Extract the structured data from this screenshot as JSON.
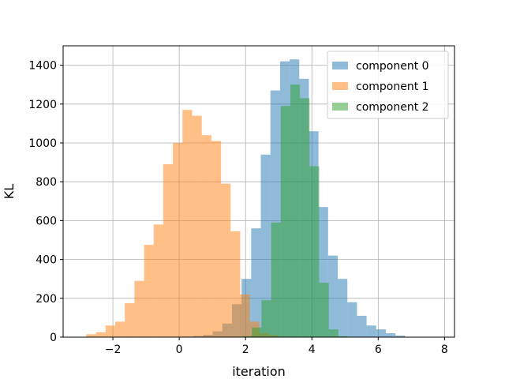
{
  "chart_data": {
    "type": "bar",
    "subtype": "overlaid-histogram",
    "title": "",
    "xlabel": "iteration",
    "ylabel": "KL",
    "xlim": [
      -3.5,
      8.3
    ],
    "ylim": [
      0,
      1500
    ],
    "xticks": [
      -2,
      0,
      2,
      4,
      6,
      8
    ],
    "xtick_labels": [
      "−2",
      "0",
      "2",
      "4",
      "6",
      "8"
    ],
    "yticks": [
      0,
      200,
      400,
      600,
      800,
      1000,
      1200,
      1400
    ],
    "ytick_labels": [
      "0",
      "200",
      "400",
      "600",
      "800",
      "1000",
      "1200",
      "1400"
    ],
    "grid": true,
    "legend_position": "top-right",
    "bar_opacity": 0.5,
    "series": [
      {
        "name": "component 0",
        "color": "#1f77b4",
        "bin_edges": [
          -0.15,
          0.14,
          0.43,
          0.72,
          1.01,
          1.3,
          1.59,
          1.88,
          2.17,
          2.46,
          2.75,
          3.04,
          3.33,
          3.62,
          3.91,
          4.2,
          4.49,
          4.78,
          5.07,
          5.36,
          5.65,
          5.94,
          6.23,
          6.52,
          6.81
        ],
        "values": [
          2,
          3,
          6,
          12,
          30,
          70,
          170,
          300,
          560,
          940,
          1270,
          1420,
          1430,
          1330,
          1060,
          670,
          420,
          300,
          180,
          110,
          60,
          40,
          20,
          8
        ]
      },
      {
        "name": "component 1",
        "color": "#ff7f0e",
        "bin_edges": [
          -2.8,
          -2.51,
          -2.22,
          -1.93,
          -1.64,
          -1.35,
          -1.06,
          -0.77,
          -0.48,
          -0.19,
          0.1,
          0.39,
          0.68,
          0.97,
          1.26,
          1.55,
          1.84,
          2.13,
          2.42,
          2.71,
          3.0
        ],
        "values": [
          15,
          25,
          60,
          80,
          175,
          290,
          475,
          580,
          890,
          1000,
          1170,
          1140,
          1040,
          1010,
          790,
          545,
          220,
          80,
          20,
          10
        ]
      },
      {
        "name": "component 2",
        "color": "#2ca02c",
        "bin_edges": [
          1.9,
          2.19,
          2.48,
          2.77,
          3.06,
          3.35,
          3.64,
          3.93,
          4.22,
          4.51,
          4.8,
          5.09
        ],
        "values": [
          5,
          50,
          190,
          590,
          1190,
          1300,
          1230,
          880,
          280,
          40,
          5
        ]
      }
    ]
  }
}
